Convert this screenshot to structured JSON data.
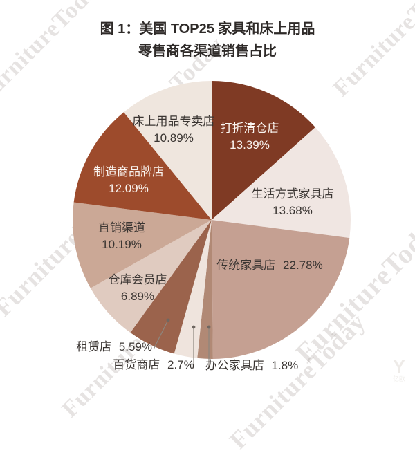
{
  "title": {
    "line1": "图 1：美国 TOP25 家具和床上用品",
    "line2": "零售商各渠道销售占比",
    "color": "#2e2a28"
  },
  "watermark": {
    "text": "FurnitureToday",
    "logo_mark": "Y",
    "logo_text": "亿欧"
  },
  "chart_data": {
    "type": "pie",
    "title": "图 1：美国 TOP25 家具和床上用品零售商各渠道销售占比",
    "unit": "percent",
    "start_at": "top",
    "direction": "clockwise",
    "legend_position": "none",
    "background": "#ffffff",
    "slices": [
      {
        "label": "打折清仓店",
        "value": 13.39,
        "display": "13.39%",
        "color": "#7f3a24",
        "text_color": "#faf5f1"
      },
      {
        "label": "生活方式家具店",
        "value": 13.68,
        "display": "13.68%",
        "color": "#f0e6e2",
        "text_color": "#3a3532"
      },
      {
        "label": "传统家具店",
        "value": 22.78,
        "display": "22.78%",
        "color": "#c5a092",
        "text_color": "#3a3532"
      },
      {
        "label": "办公家具店",
        "value": 1.8,
        "display": "1.8%",
        "color": "#b18975",
        "text_color": "#3a3532"
      },
      {
        "label": "百货商店",
        "value": 2.7,
        "display": "2.7%",
        "color": "#efe4dd",
        "text_color": "#3a3532"
      },
      {
        "label": "租赁店",
        "value": 5.59,
        "display": "5.59%",
        "color": "#9b634c",
        "text_color": "#3a3532"
      },
      {
        "label": "仓库会员店",
        "value": 6.89,
        "display": "6.89%",
        "color": "#e0cbc0",
        "text_color": "#3a3532"
      },
      {
        "label": "直销渠道",
        "value": 10.19,
        "display": "10.19%",
        "color": "#cba896",
        "text_color": "#3a3532"
      },
      {
        "label": "制造商品牌店",
        "value": 12.09,
        "display": "12.09%",
        "color": "#9d4b2c",
        "text_color": "#faf5f1"
      },
      {
        "label": "床上用品专卖店",
        "value": 10.89,
        "display": "10.89%",
        "color": "#efe6de",
        "text_color": "#3a3532"
      }
    ]
  }
}
